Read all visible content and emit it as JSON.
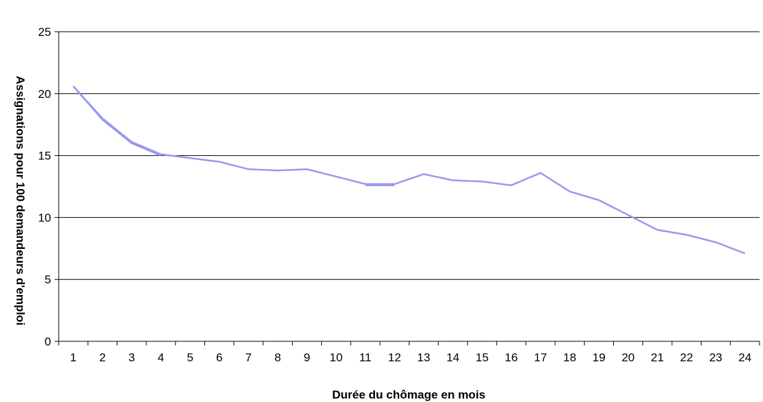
{
  "chart_data": {
    "type": "line",
    "title": "",
    "xlabel": "Durée du chômage en mois",
    "ylabel": "Assignations pour 100 demandeurs d'emploi",
    "categories": [
      "1",
      "2",
      "3",
      "4",
      "5",
      "6",
      "7",
      "8",
      "9",
      "10",
      "11",
      "12",
      "13",
      "14",
      "15",
      "16",
      "17",
      "18",
      "19",
      "20",
      "21",
      "22",
      "23",
      "24"
    ],
    "series": [
      {
        "values": [
          20.6,
          18.0,
          16.1,
          15.1,
          14.8,
          14.5,
          13.9,
          13.8,
          13.9,
          13.3,
          12.7,
          12.7,
          13.5,
          13.0,
          12.9,
          12.6,
          13.6,
          12.1,
          11.4,
          10.2,
          9.0,
          8.6,
          8.0,
          7.1
        ],
        "color": "#9999ee"
      },
      {
        "values": [
          20.6,
          17.9,
          16.0,
          15.0,
          null,
          null,
          null,
          null,
          null,
          null,
          12.6,
          12.6,
          null,
          null,
          null,
          null,
          null,
          null,
          null,
          null,
          null,
          null,
          null,
          null
        ],
        "color": "#9999ee"
      }
    ],
    "yticks": [
      "0",
      "5",
      "10",
      "15",
      "20",
      "25"
    ],
    "ylim": [
      0,
      25
    ],
    "grid": true,
    "legend": "none"
  }
}
